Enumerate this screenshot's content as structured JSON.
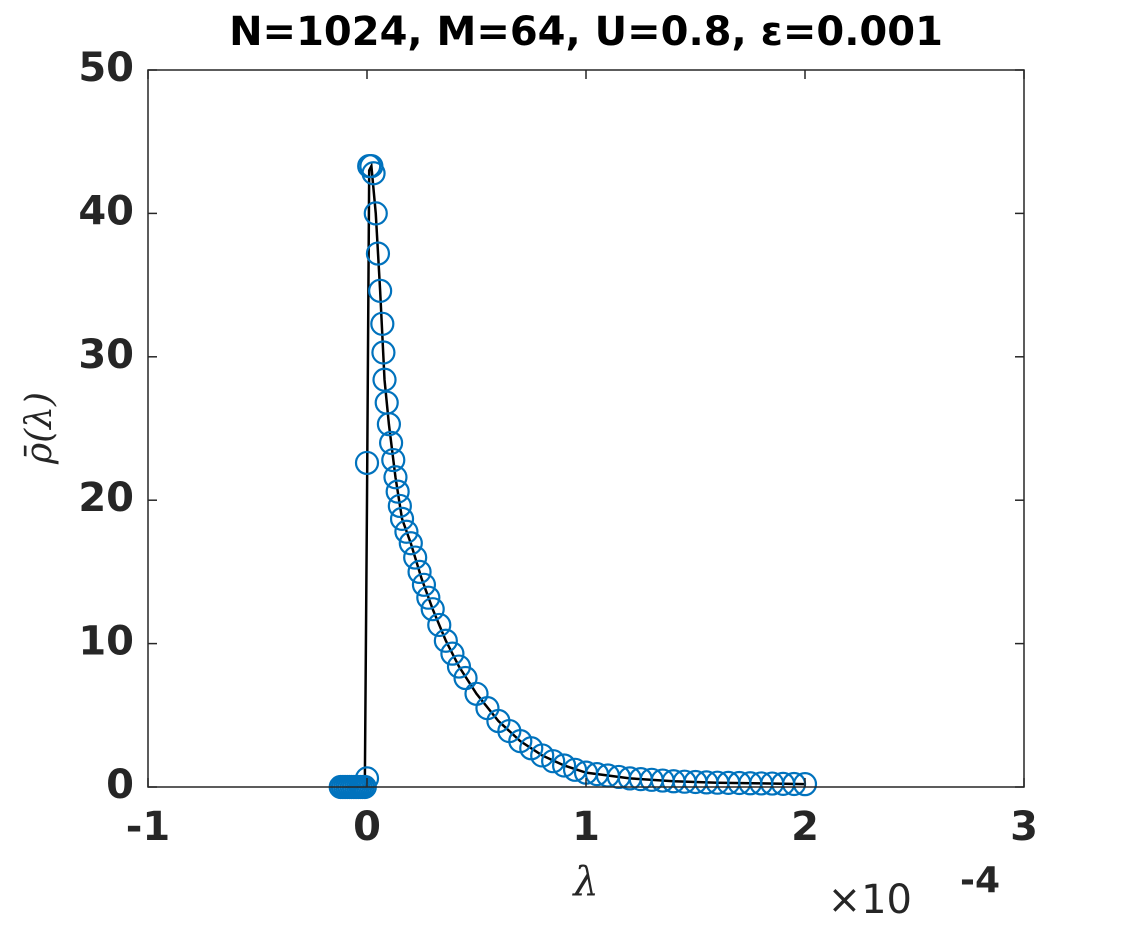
{
  "chart_data": {
    "type": "scatter",
    "title": "N=1024, M=64, U=0.8, ε=0.001",
    "x_label": "λ",
    "y_label": "ρ̄(λ)",
    "x_multiplier": "×10",
    "x_multiplier_exponent": "-4",
    "xlim": [
      -1,
      3
    ],
    "xticks": [
      -1,
      0,
      1,
      2,
      3
    ],
    "ylim": [
      0,
      50
    ],
    "yticks": [
      0,
      10,
      20,
      30,
      40,
      50
    ],
    "grid": false,
    "series": [
      {
        "kind": "line",
        "color": "#000000",
        "x": [
          -0.1,
          -0.01,
          0,
          0.01,
          0.02,
          0.04,
          0.06,
          0.08,
          0.1,
          0.13,
          0.16,
          0.2,
          0.25,
          0.3,
          0.36,
          0.42,
          0.5,
          0.6,
          0.7,
          0.8,
          0.9,
          1.0,
          1.2,
          1.4,
          1.6,
          1.8,
          2.0
        ],
        "values": [
          0,
          0,
          20,
          43,
          43.3,
          40,
          34.6,
          28.4,
          25.3,
          21.6,
          18.7,
          17,
          14.5,
          12.4,
          10.2,
          8.4,
          6.5,
          4.6,
          3.2,
          2.2,
          1.5,
          1.0,
          0.6,
          0.4,
          0.3,
          0.25,
          0.2
        ]
      },
      {
        "kind": "markers",
        "color": "#0072bd",
        "x": [
          -0.12,
          -0.11,
          -0.1,
          -0.09,
          -0.08,
          -0.07,
          -0.06,
          -0.05,
          -0.04,
          -0.03,
          -0.02,
          -0.01,
          0,
          0,
          0.01,
          0.02,
          0.03,
          0.04,
          0.05,
          0.06,
          0.07,
          0.075,
          0.08,
          0.09,
          0.1,
          0.11,
          0.12,
          0.13,
          0.14,
          0.15,
          0.16,
          0.18,
          0.2,
          0.22,
          0.24,
          0.26,
          0.28,
          0.3,
          0.33,
          0.36,
          0.39,
          0.42,
          0.45,
          0.5,
          0.55,
          0.6,
          0.65,
          0.7,
          0.75,
          0.8,
          0.85,
          0.9,
          0.95,
          1.0,
          1.05,
          1.1,
          1.15,
          1.2,
          1.25,
          1.3,
          1.35,
          1.4,
          1.45,
          1.5,
          1.55,
          1.6,
          1.65,
          1.7,
          1.75,
          1.8,
          1.85,
          1.9,
          1.95,
          2.0
        ],
        "values": [
          0,
          0,
          0,
          0,
          0,
          0,
          0,
          0,
          0,
          0,
          0,
          0,
          0.6,
          22.6,
          43.3,
          43.3,
          42.8,
          40,
          37.2,
          34.6,
          32.3,
          30.3,
          28.4,
          26.8,
          25.3,
          24,
          22.8,
          21.6,
          20.6,
          19.6,
          18.7,
          17.8,
          17,
          16,
          15,
          14.1,
          13.2,
          12.4,
          11.3,
          10.2,
          9.3,
          8.4,
          7.6,
          6.5,
          5.5,
          4.6,
          3.9,
          3.2,
          2.7,
          2.2,
          1.8,
          1.5,
          1.2,
          1.0,
          0.9,
          0.8,
          0.7,
          0.6,
          0.55,
          0.5,
          0.45,
          0.4,
          0.37,
          0.35,
          0.32,
          0.3,
          0.29,
          0.28,
          0.26,
          0.25,
          0.24,
          0.22,
          0.21,
          0.2
        ]
      }
    ]
  }
}
